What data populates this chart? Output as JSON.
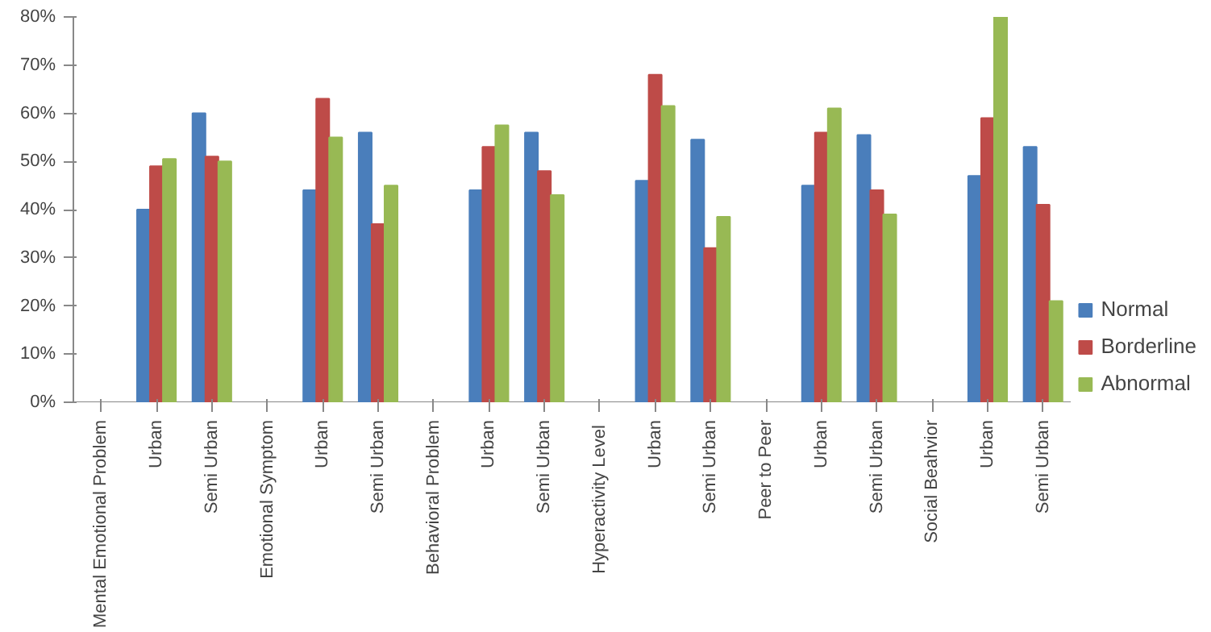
{
  "chart_data": {
    "type": "bar",
    "categories": [
      "Mental Emotional Problem",
      "Urban",
      "Semi Urban",
      "Emotional Symptom",
      "Urban",
      "Semi Urban",
      "Behavioral Problem",
      "Urban",
      "Semi Urban",
      "Hyperactivity  Level",
      "Urban",
      "Semi Urban",
      "Peer to Peer",
      "Urban",
      "Semi Urban",
      "Social Beahvior",
      "Urban",
      "Semi Urban"
    ],
    "series": [
      {
        "name": "Normal",
        "color": "#4a7ebb",
        "values": [
          null,
          40,
          60,
          null,
          44,
          56,
          null,
          44,
          56,
          null,
          46,
          54.5,
          null,
          45,
          55.5,
          null,
          47,
          53
        ]
      },
      {
        "name": "Borderline",
        "color": "#be4b48",
        "values": [
          null,
          49,
          51,
          null,
          63,
          37,
          null,
          53,
          48,
          null,
          68,
          32,
          null,
          56,
          44,
          null,
          59,
          41
        ]
      },
      {
        "name": "Abnormal",
        "color": "#98b954",
        "values": [
          null,
          50.5,
          50,
          null,
          55,
          45,
          null,
          57.5,
          43,
          null,
          61.5,
          38.5,
          null,
          61,
          39,
          null,
          80,
          21
        ]
      }
    ],
    "ylim": [
      0,
      80
    ],
    "yticks": [
      {
        "value": 0,
        "label": "0%"
      },
      {
        "value": 10,
        "label": "10%"
      },
      {
        "value": 20,
        "label": "20%"
      },
      {
        "value": 30,
        "label": "30%"
      },
      {
        "value": 40,
        "label": "40%"
      },
      {
        "value": 50,
        "label": "50%"
      },
      {
        "value": 60,
        "label": "60%"
      },
      {
        "value": 70,
        "label": "70%"
      },
      {
        "value": 80,
        "label": "80%"
      }
    ],
    "grid": false,
    "legend": "right"
  }
}
